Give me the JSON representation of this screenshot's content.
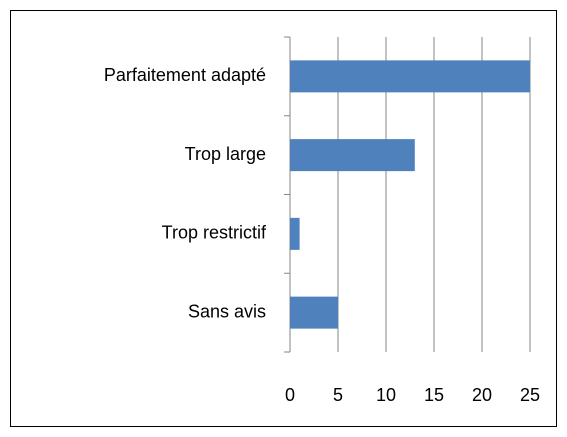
{
  "chart_data": {
    "type": "bar",
    "orientation": "horizontal",
    "categories": [
      "Parfaitement adapté",
      "Trop large",
      "Trop restrictif",
      "Sans avis"
    ],
    "values": [
      25,
      13,
      1,
      5
    ],
    "color": "#4f81bd",
    "xlim": [
      0,
      25
    ],
    "xticks": [
      0,
      5,
      10,
      15,
      20,
      25
    ],
    "grid": true
  }
}
